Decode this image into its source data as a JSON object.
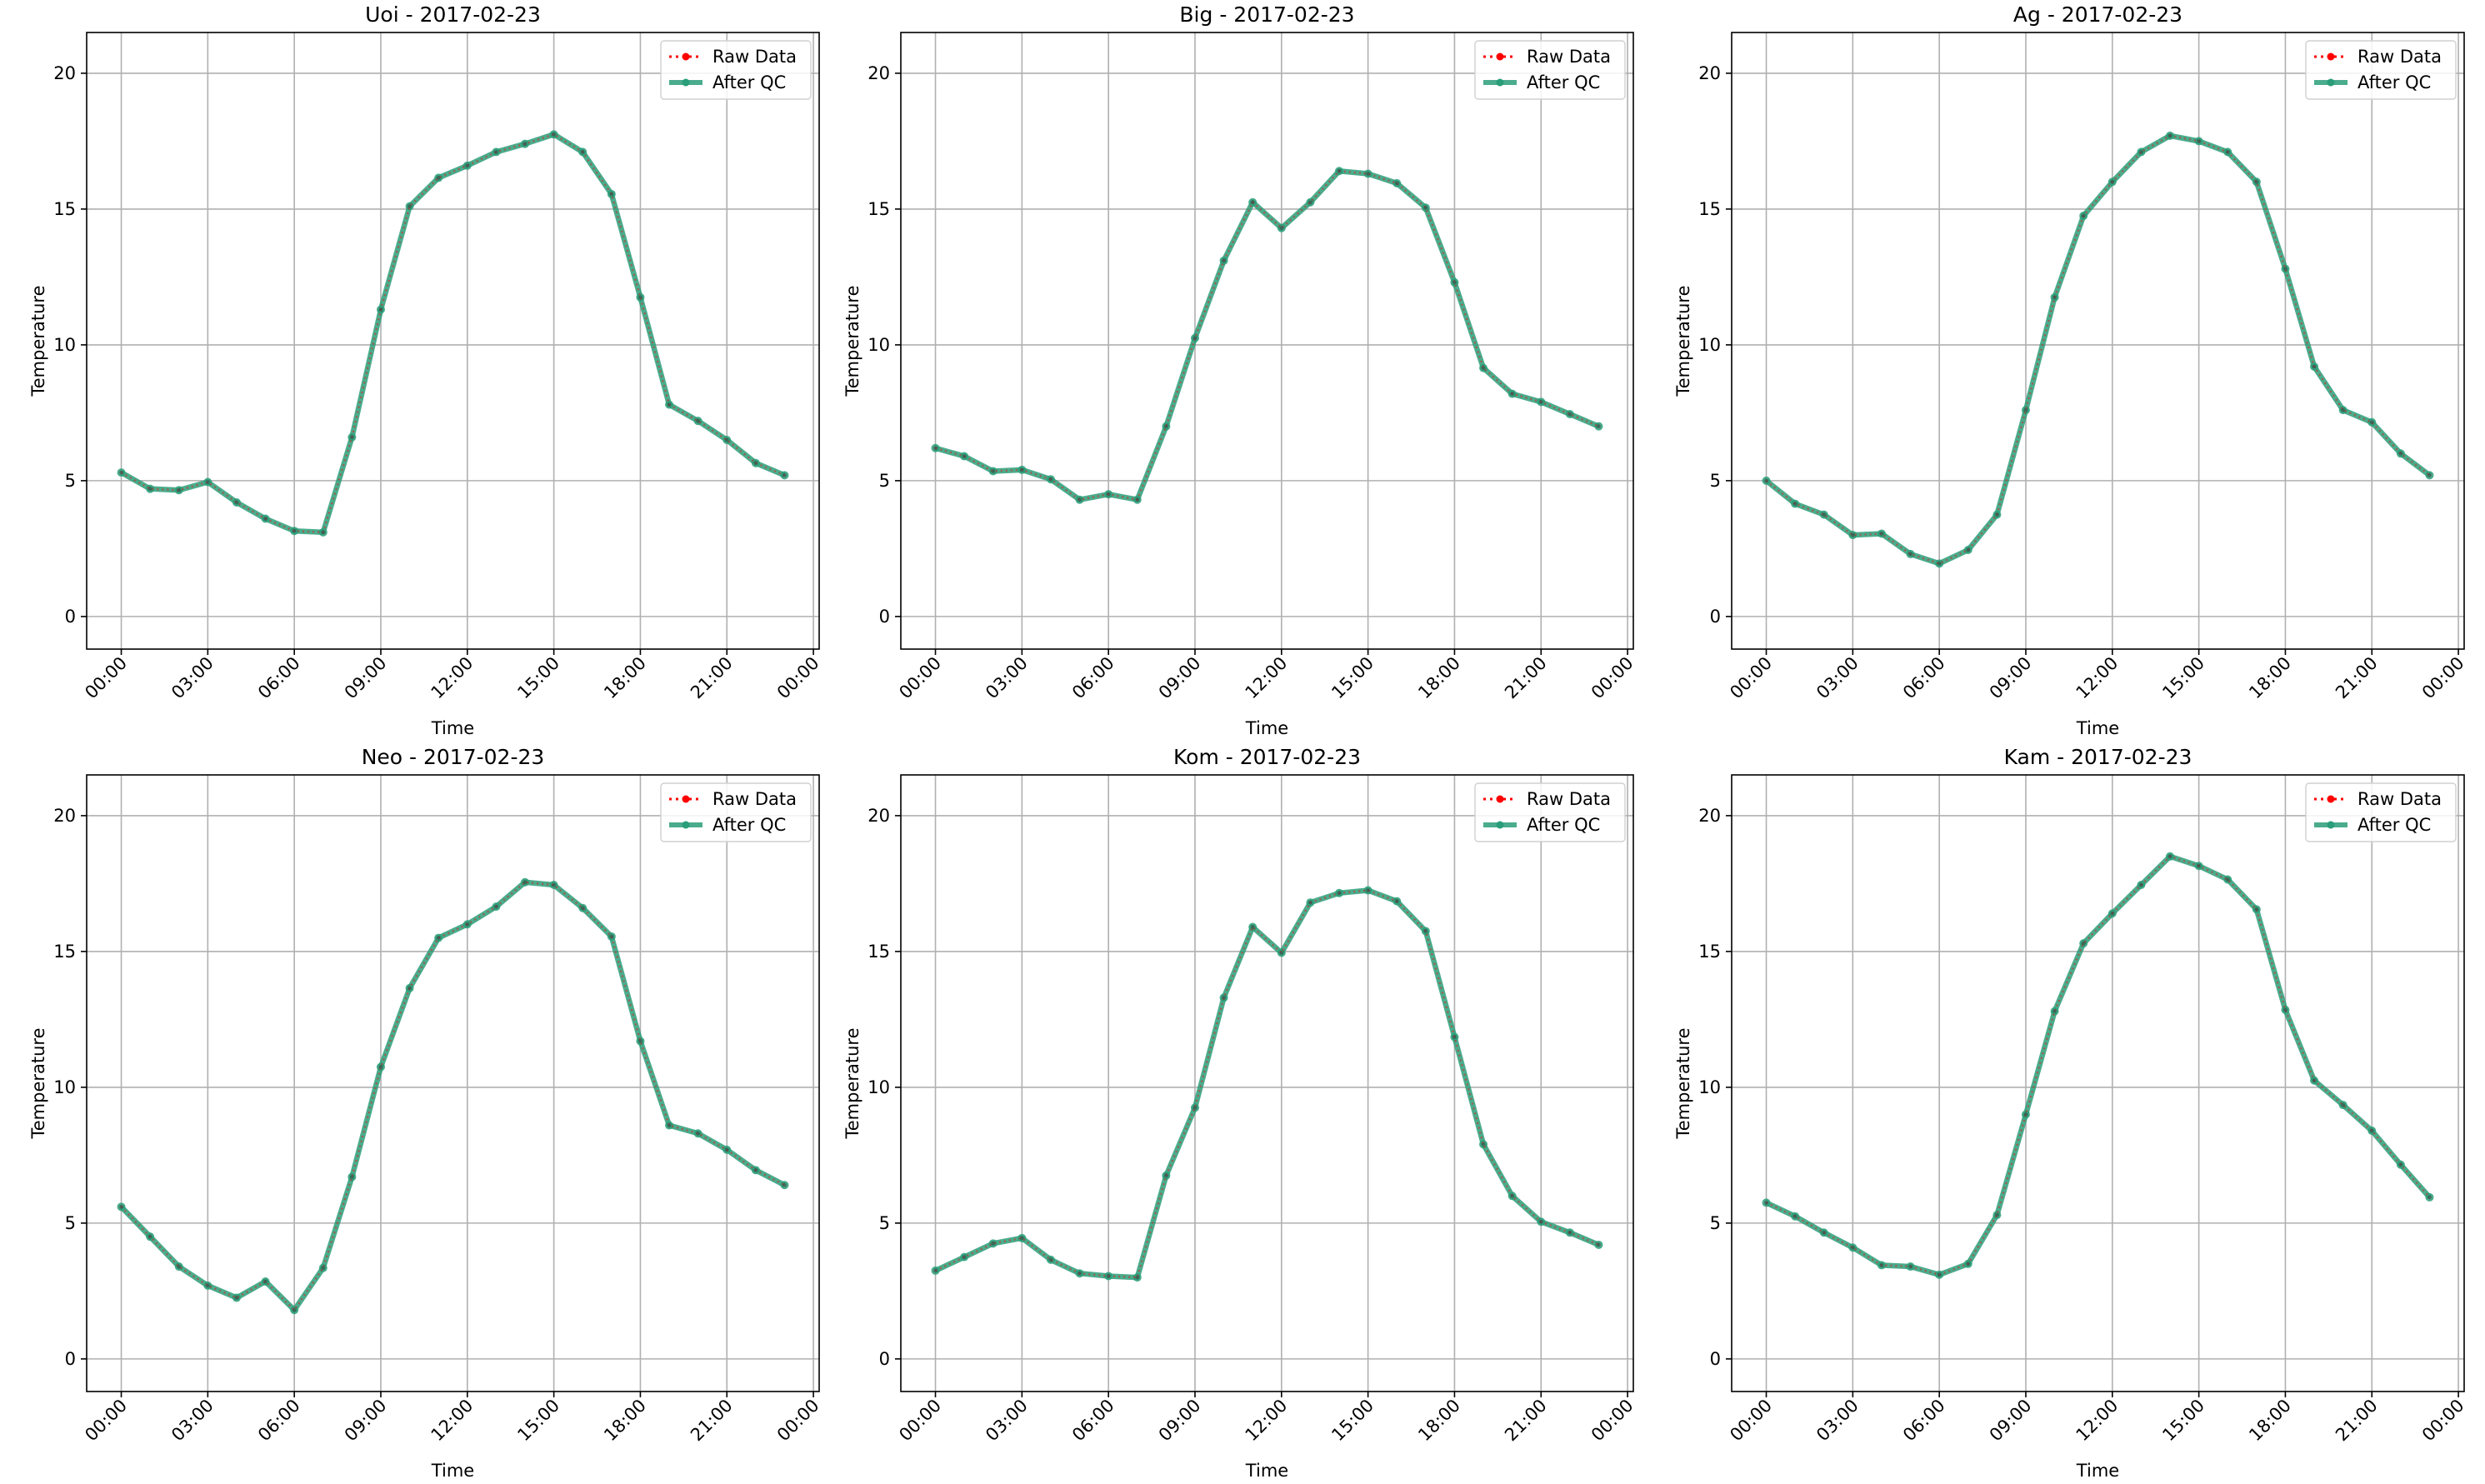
{
  "legend": {
    "raw_label": "Raw Data",
    "qc_label": "After QC"
  },
  "colors": {
    "raw": "#ff0000",
    "qc": "#2a9d79",
    "grid": "#b0b0b0",
    "axis": "#000000"
  },
  "chart_data": [
    {
      "type": "line",
      "title": "Uoi - 2017-02-23",
      "xlabel": "Time",
      "ylabel": "Temperature",
      "x_ticks": [
        "00:00",
        "03:00",
        "06:00",
        "09:00",
        "12:00",
        "15:00",
        "18:00",
        "21:00",
        "00:00"
      ],
      "y_ticks": [
        0,
        5,
        10,
        15,
        20
      ],
      "xlim": [
        -1.2,
        24.2
      ],
      "ylim": [
        -1.2,
        21.5
      ],
      "grid": true,
      "legend_position": "top-right",
      "hours": [
        0,
        1,
        2,
        3,
        4,
        5,
        6,
        7,
        8,
        9,
        10,
        11,
        12,
        13,
        14,
        15,
        16,
        17,
        18,
        19,
        20,
        21,
        22,
        23
      ],
      "series": [
        {
          "name": "Raw Data",
          "values": [
            5.3,
            4.7,
            4.65,
            4.95,
            4.2,
            3.6,
            3.15,
            3.1,
            6.6,
            11.3,
            15.1,
            16.15,
            16.6,
            17.1,
            17.4,
            17.75,
            17.1,
            15.55,
            11.75,
            7.8,
            7.2,
            6.5,
            5.65,
            5.2
          ]
        },
        {
          "name": "After QC",
          "values": [
            5.3,
            4.7,
            4.65,
            4.95,
            4.2,
            3.6,
            3.15,
            3.1,
            6.6,
            11.3,
            15.1,
            16.15,
            16.6,
            17.1,
            17.4,
            17.75,
            17.1,
            15.55,
            11.75,
            7.8,
            7.2,
            6.5,
            5.65,
            5.2
          ]
        }
      ]
    },
    {
      "type": "line",
      "title": "Big - 2017-02-23",
      "xlabel": "Time",
      "ylabel": "Temperature",
      "x_ticks": [
        "00:00",
        "03:00",
        "06:00",
        "09:00",
        "12:00",
        "15:00",
        "18:00",
        "21:00",
        "00:00"
      ],
      "y_ticks": [
        0,
        5,
        10,
        15,
        20
      ],
      "xlim": [
        -1.2,
        24.2
      ],
      "ylim": [
        -1.2,
        21.5
      ],
      "grid": true,
      "legend_position": "top-right",
      "hours": [
        0,
        1,
        2,
        3,
        4,
        5,
        6,
        7,
        8,
        9,
        10,
        11,
        12,
        13,
        14,
        15,
        16,
        17,
        18,
        19,
        20,
        21,
        22,
        23
      ],
      "series": [
        {
          "name": "Raw Data",
          "values": [
            6.2,
            5.9,
            5.35,
            5.4,
            5.05,
            4.3,
            4.5,
            4.3,
            7.0,
            10.25,
            13.1,
            15.25,
            14.3,
            15.25,
            16.4,
            16.3,
            15.95,
            15.05,
            12.3,
            9.15,
            8.2,
            7.9,
            7.45,
            7.0
          ]
        },
        {
          "name": "After QC",
          "values": [
            6.2,
            5.9,
            5.35,
            5.4,
            5.05,
            4.3,
            4.5,
            4.3,
            7.0,
            10.25,
            13.1,
            15.25,
            14.3,
            15.25,
            16.4,
            16.3,
            15.95,
            15.05,
            12.3,
            9.15,
            8.2,
            7.9,
            7.45,
            7.0
          ]
        }
      ]
    },
    {
      "type": "line",
      "title": "Ag - 2017-02-23",
      "xlabel": "Time",
      "ylabel": "Temperature",
      "x_ticks": [
        "00:00",
        "03:00",
        "06:00",
        "09:00",
        "12:00",
        "15:00",
        "18:00",
        "21:00",
        "00:00"
      ],
      "y_ticks": [
        0,
        5,
        10,
        15,
        20
      ],
      "xlim": [
        -1.2,
        24.2
      ],
      "ylim": [
        -1.2,
        21.5
      ],
      "grid": true,
      "legend_position": "top-right",
      "hours": [
        0,
        1,
        2,
        3,
        4,
        5,
        6,
        7,
        8,
        9,
        10,
        11,
        12,
        13,
        14,
        15,
        16,
        17,
        18,
        19,
        20,
        21,
        22,
        23
      ],
      "series": [
        {
          "name": "Raw Data",
          "values": [
            5.0,
            4.15,
            3.75,
            3.0,
            3.05,
            2.3,
            1.95,
            2.45,
            3.75,
            7.6,
            11.75,
            14.75,
            16.0,
            17.1,
            17.7,
            17.5,
            17.1,
            16.0,
            12.8,
            9.2,
            7.6,
            7.15,
            6.0,
            5.2
          ]
        },
        {
          "name": "After QC",
          "values": [
            5.0,
            4.15,
            3.75,
            3.0,
            3.05,
            2.3,
            1.95,
            2.45,
            3.75,
            7.6,
            11.75,
            14.75,
            16.0,
            17.1,
            17.7,
            17.5,
            17.1,
            16.0,
            12.8,
            9.2,
            7.6,
            7.15,
            6.0,
            5.2
          ]
        }
      ]
    },
    {
      "type": "line",
      "title": "Neo - 2017-02-23",
      "xlabel": "Time",
      "ylabel": "Temperature",
      "x_ticks": [
        "00:00",
        "03:00",
        "06:00",
        "09:00",
        "12:00",
        "15:00",
        "18:00",
        "21:00",
        "00:00"
      ],
      "y_ticks": [
        0,
        5,
        10,
        15,
        20
      ],
      "xlim": [
        -1.2,
        24.2
      ],
      "ylim": [
        -1.2,
        21.5
      ],
      "grid": true,
      "legend_position": "top-right",
      "hours": [
        0,
        1,
        2,
        3,
        4,
        5,
        6,
        7,
        8,
        9,
        10,
        11,
        12,
        13,
        14,
        15,
        16,
        17,
        18,
        19,
        20,
        21,
        22,
        23
      ],
      "series": [
        {
          "name": "Raw Data",
          "values": [
            5.6,
            4.5,
            3.4,
            2.7,
            2.25,
            2.85,
            1.8,
            3.35,
            6.7,
            10.75,
            13.65,
            15.5,
            16.0,
            16.65,
            17.55,
            17.45,
            16.6,
            15.55,
            11.7,
            8.6,
            8.3,
            7.7,
            6.95,
            6.4
          ]
        },
        {
          "name": "After QC",
          "values": [
            5.6,
            4.5,
            3.4,
            2.7,
            2.25,
            2.85,
            1.8,
            3.35,
            6.7,
            10.75,
            13.65,
            15.5,
            16.0,
            16.65,
            17.55,
            17.45,
            16.6,
            15.55,
            11.7,
            8.6,
            8.3,
            7.7,
            6.95,
            6.4
          ]
        }
      ]
    },
    {
      "type": "line",
      "title": "Kom - 2017-02-23",
      "xlabel": "Time",
      "ylabel": "Temperature",
      "x_ticks": [
        "00:00",
        "03:00",
        "06:00",
        "09:00",
        "12:00",
        "15:00",
        "18:00",
        "21:00",
        "00:00"
      ],
      "y_ticks": [
        0,
        5,
        10,
        15,
        20
      ],
      "xlim": [
        -1.2,
        24.2
      ],
      "ylim": [
        -1.2,
        21.5
      ],
      "grid": true,
      "legend_position": "top-right",
      "hours": [
        0,
        1,
        2,
        3,
        4,
        5,
        6,
        7,
        8,
        9,
        10,
        11,
        12,
        13,
        14,
        15,
        16,
        17,
        18,
        19,
        20,
        21,
        22,
        23
      ],
      "series": [
        {
          "name": "Raw Data",
          "values": [
            3.25,
            3.75,
            4.25,
            4.45,
            3.65,
            3.15,
            3.05,
            3.0,
            6.75,
            9.25,
            13.3,
            15.9,
            14.95,
            16.8,
            17.15,
            17.25,
            16.85,
            15.75,
            11.85,
            7.9,
            6.0,
            5.05,
            4.65,
            4.2
          ]
        },
        {
          "name": "After QC",
          "values": [
            3.25,
            3.75,
            4.25,
            4.45,
            3.65,
            3.15,
            3.05,
            3.0,
            6.75,
            9.25,
            13.3,
            15.9,
            14.95,
            16.8,
            17.15,
            17.25,
            16.85,
            15.75,
            11.85,
            7.9,
            6.0,
            5.05,
            4.65,
            4.2
          ]
        }
      ]
    },
    {
      "type": "line",
      "title": "Kam - 2017-02-23",
      "xlabel": "Time",
      "ylabel": "Temperature",
      "x_ticks": [
        "00:00",
        "03:00",
        "06:00",
        "09:00",
        "12:00",
        "15:00",
        "18:00",
        "21:00",
        "00:00"
      ],
      "y_ticks": [
        0,
        5,
        10,
        15,
        20
      ],
      "xlim": [
        -1.2,
        24.2
      ],
      "ylim": [
        -1.2,
        21.5
      ],
      "grid": true,
      "legend_position": "top-right",
      "hours": [
        0,
        1,
        2,
        3,
        4,
        5,
        6,
        7,
        8,
        9,
        10,
        11,
        12,
        13,
        14,
        15,
        16,
        17,
        18,
        19,
        20,
        21,
        22,
        23
      ],
      "series": [
        {
          "name": "Raw Data",
          "values": [
            5.75,
            5.25,
            4.65,
            4.1,
            3.45,
            3.4,
            3.1,
            3.5,
            5.3,
            9.0,
            12.8,
            15.3,
            16.4,
            17.45,
            18.5,
            18.15,
            17.65,
            16.55,
            12.85,
            10.25,
            9.35,
            8.4,
            7.15,
            5.95
          ]
        },
        {
          "name": "After QC",
          "values": [
            5.75,
            5.25,
            4.65,
            4.1,
            3.45,
            3.4,
            3.1,
            3.5,
            5.3,
            9.0,
            12.8,
            15.3,
            16.4,
            17.45,
            18.5,
            18.15,
            17.65,
            16.55,
            12.85,
            10.25,
            9.35,
            8.4,
            7.15,
            5.95
          ]
        }
      ]
    }
  ]
}
